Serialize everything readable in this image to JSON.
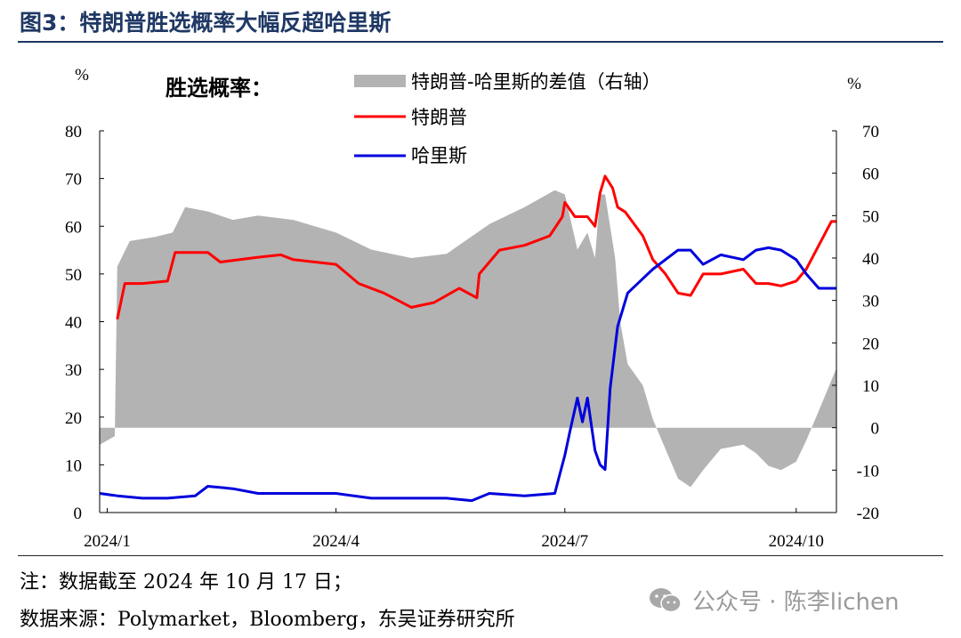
{
  "figure": {
    "title": "图3：特朗普胜选概率大幅反超哈里斯",
    "note": "注：数据截至 2024 年 10 月 17 日；",
    "source": "数据来源：Polymarket，Bloomberg，东吴证券研究所",
    "watermark": "公众号 · 陈李lichen",
    "watermark_icon": "wechat-icon"
  },
  "chart_data": {
    "type": "line",
    "chart_label": "胜选概率：",
    "left_unit": "%",
    "right_unit": "%",
    "ylim_left": [
      0,
      80
    ],
    "ylim_right": [
      -20,
      70
    ],
    "yticks_left": [
      "0",
      "10",
      "20",
      "30",
      "40",
      "50",
      "60",
      "70",
      "80"
    ],
    "yticks_right": [
      "-20",
      "-10",
      "0",
      "10",
      "20",
      "30",
      "40",
      "50",
      "60",
      "70"
    ],
    "xticks": [
      "2024/1",
      "2024/4",
      "2024/7",
      "2024/10"
    ],
    "xtick_dates": [
      "2024-01-01",
      "2024-04-01",
      "2024-07-01",
      "2024-10-01"
    ],
    "x_range": [
      "2023-12-29",
      "2024-10-17"
    ],
    "legend_position": "top-center",
    "grid": false,
    "colors": {
      "spread": "#b3b3b3",
      "trump": "#ff0000",
      "harris": "#0000dd"
    },
    "series": [
      {
        "name": "特朗普-哈里斯的差值（右轴）",
        "type": "area",
        "axis": "right",
        "points": [
          [
            "2023-12-29",
            -4
          ],
          [
            "2024-01-04",
            -2
          ],
          [
            "2024-01-05",
            38
          ],
          [
            "2024-01-10",
            44
          ],
          [
            "2024-01-20",
            45
          ],
          [
            "2024-01-27",
            46
          ],
          [
            "2024-02-01",
            52
          ],
          [
            "2024-02-10",
            51
          ],
          [
            "2024-02-20",
            49
          ],
          [
            "2024-03-01",
            50
          ],
          [
            "2024-03-15",
            49
          ],
          [
            "2024-04-01",
            46
          ],
          [
            "2024-04-15",
            42
          ],
          [
            "2024-05-01",
            40
          ],
          [
            "2024-05-15",
            41
          ],
          [
            "2024-06-01",
            48
          ],
          [
            "2024-06-15",
            52
          ],
          [
            "2024-06-27",
            56
          ],
          [
            "2024-07-01",
            55
          ],
          [
            "2024-07-06",
            42
          ],
          [
            "2024-07-10",
            46
          ],
          [
            "2024-07-13",
            40
          ],
          [
            "2024-07-15",
            55
          ],
          [
            "2024-07-17",
            55
          ],
          [
            "2024-07-21",
            40
          ],
          [
            "2024-07-23",
            25
          ],
          [
            "2024-07-26",
            15
          ],
          [
            "2024-08-01",
            10
          ],
          [
            "2024-08-05",
            2
          ],
          [
            "2024-08-10",
            -5
          ],
          [
            "2024-08-15",
            -12
          ],
          [
            "2024-08-20",
            -14
          ],
          [
            "2024-08-25",
            -10
          ],
          [
            "2024-09-01",
            -5
          ],
          [
            "2024-09-10",
            -4
          ],
          [
            "2024-09-15",
            -6
          ],
          [
            "2024-09-20",
            -9
          ],
          [
            "2024-09-25",
            -10
          ],
          [
            "2024-10-01",
            -8
          ],
          [
            "2024-10-05",
            -3
          ],
          [
            "2024-10-10",
            4
          ],
          [
            "2024-10-17",
            14
          ]
        ]
      },
      {
        "name": "特朗普",
        "type": "line",
        "axis": "left",
        "points": [
          [
            "2024-01-05",
            40.5
          ],
          [
            "2024-01-08",
            48
          ],
          [
            "2024-01-15",
            48
          ],
          [
            "2024-01-25",
            48.5
          ],
          [
            "2024-01-28",
            54.5
          ],
          [
            "2024-02-10",
            54.5
          ],
          [
            "2024-02-15",
            52.5
          ],
          [
            "2024-03-01",
            53.5
          ],
          [
            "2024-03-10",
            54
          ],
          [
            "2024-03-15",
            53
          ],
          [
            "2024-04-01",
            52
          ],
          [
            "2024-04-10",
            48
          ],
          [
            "2024-04-20",
            46
          ],
          [
            "2024-05-01",
            43
          ],
          [
            "2024-05-10",
            44
          ],
          [
            "2024-05-20",
            47
          ],
          [
            "2024-05-27",
            45
          ],
          [
            "2024-05-28",
            50
          ],
          [
            "2024-06-05",
            55
          ],
          [
            "2024-06-15",
            56
          ],
          [
            "2024-06-25",
            58
          ],
          [
            "2024-06-30",
            62
          ],
          [
            "2024-07-01",
            65
          ],
          [
            "2024-07-05",
            62
          ],
          [
            "2024-07-10",
            62
          ],
          [
            "2024-07-13",
            60
          ],
          [
            "2024-07-15",
            67
          ],
          [
            "2024-07-17",
            70.5
          ],
          [
            "2024-07-20",
            68
          ],
          [
            "2024-07-22",
            64
          ],
          [
            "2024-07-25",
            63
          ],
          [
            "2024-08-01",
            58
          ],
          [
            "2024-08-05",
            53
          ],
          [
            "2024-08-10",
            50
          ],
          [
            "2024-08-15",
            46
          ],
          [
            "2024-08-20",
            45.5
          ],
          [
            "2024-08-25",
            50
          ],
          [
            "2024-09-01",
            50
          ],
          [
            "2024-09-10",
            51
          ],
          [
            "2024-09-15",
            48
          ],
          [
            "2024-09-20",
            48
          ],
          [
            "2024-09-25",
            47.5
          ],
          [
            "2024-10-01",
            48.5
          ],
          [
            "2024-10-05",
            51
          ],
          [
            "2024-10-10",
            56
          ],
          [
            "2024-10-15",
            61
          ],
          [
            "2024-10-17",
            61
          ]
        ]
      },
      {
        "name": "哈里斯",
        "type": "line",
        "axis": "left",
        "points": [
          [
            "2023-12-29",
            4
          ],
          [
            "2024-01-05",
            3.5
          ],
          [
            "2024-01-15",
            3
          ],
          [
            "2024-01-25",
            3
          ],
          [
            "2024-02-05",
            3.5
          ],
          [
            "2024-02-10",
            5.5
          ],
          [
            "2024-02-20",
            5
          ],
          [
            "2024-03-01",
            4
          ],
          [
            "2024-03-15",
            4
          ],
          [
            "2024-04-01",
            4
          ],
          [
            "2024-04-15",
            3
          ],
          [
            "2024-05-01",
            3
          ],
          [
            "2024-05-15",
            3
          ],
          [
            "2024-05-25",
            2.5
          ],
          [
            "2024-06-01",
            4
          ],
          [
            "2024-06-15",
            3.5
          ],
          [
            "2024-06-27",
            4
          ],
          [
            "2024-06-29",
            8
          ],
          [
            "2024-07-01",
            12
          ],
          [
            "2024-07-03",
            17
          ],
          [
            "2024-07-06",
            24
          ],
          [
            "2024-07-08",
            19
          ],
          [
            "2024-07-10",
            24
          ],
          [
            "2024-07-13",
            13
          ],
          [
            "2024-07-15",
            10
          ],
          [
            "2024-07-17",
            9
          ],
          [
            "2024-07-19",
            26
          ],
          [
            "2024-07-22",
            39
          ],
          [
            "2024-07-26",
            46
          ],
          [
            "2024-08-01",
            49
          ],
          [
            "2024-08-05",
            51
          ],
          [
            "2024-08-10",
            53
          ],
          [
            "2024-08-15",
            55
          ],
          [
            "2024-08-20",
            55
          ],
          [
            "2024-08-25",
            52
          ],
          [
            "2024-09-01",
            54
          ],
          [
            "2024-09-10",
            53
          ],
          [
            "2024-09-15",
            55
          ],
          [
            "2024-09-20",
            55.5
          ],
          [
            "2024-09-25",
            55
          ],
          [
            "2024-10-01",
            53
          ],
          [
            "2024-10-05",
            50
          ],
          [
            "2024-10-10",
            47
          ],
          [
            "2024-10-15",
            47
          ],
          [
            "2024-10-17",
            47
          ]
        ]
      }
    ]
  }
}
